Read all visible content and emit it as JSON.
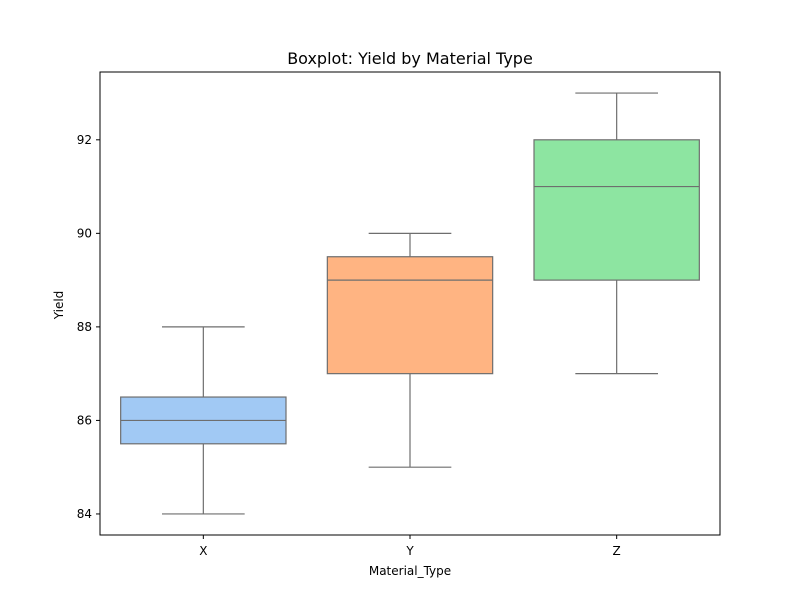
{
  "chart_data": {
    "type": "boxplot",
    "title": "Boxplot: Yield by Material Type",
    "xlabel": "Material_Type",
    "ylabel": "Yield",
    "categories": [
      "X",
      "Y",
      "Z"
    ],
    "ylim": [
      83.55,
      93.45
    ],
    "yticks": [
      84,
      86,
      88,
      90,
      92
    ],
    "grid": false,
    "boxes": [
      {
        "category": "X",
        "whisker_low": 84,
        "q1": 85.5,
        "median": 86,
        "q3": 86.5,
        "whisker_high": 88,
        "color": "#a1c9f4"
      },
      {
        "category": "Y",
        "whisker_low": 85,
        "q1": 87,
        "median": 89,
        "q3": 89.5,
        "whisker_high": 90,
        "color": "#ffb482"
      },
      {
        "category": "Z",
        "whisker_low": 87,
        "q1": 89,
        "median": 91,
        "q3": 92,
        "whisker_high": 93,
        "color": "#8de5a1"
      }
    ],
    "line_color": "#6e6e6e"
  }
}
